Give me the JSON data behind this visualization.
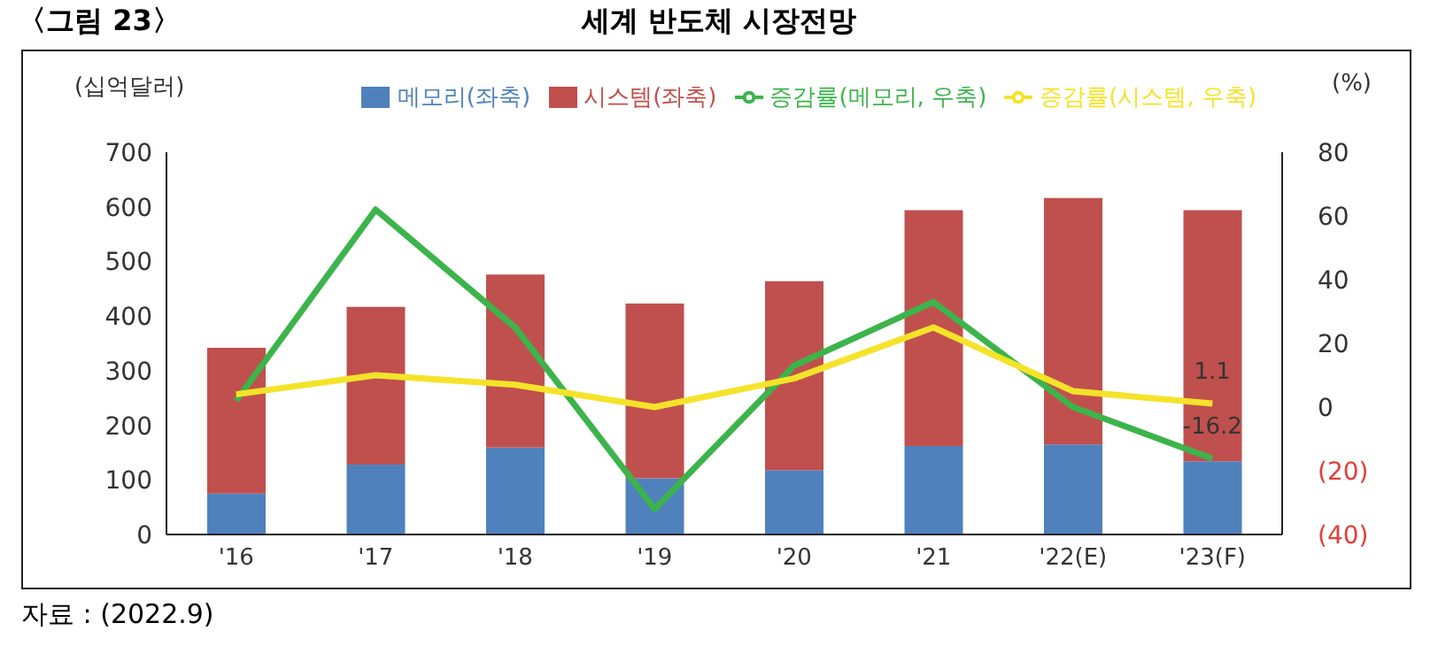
{
  "chart_data": {
    "type": "bar",
    "title": "세계 반도체 시장전망",
    "annotations": [
      "〈그림 23〉",
      "자료 : (2022.9)"
    ],
    "ylabel": "(십억달러)",
    "y2label": "(%)",
    "categories": [
      "'16",
      "'17",
      "'18",
      "'19",
      "'20",
      "'21",
      "'22(E)",
      "'23(F)"
    ],
    "stacked": true,
    "series": [
      {
        "name": "메모리(좌축)",
        "color": "#4f81bd",
        "values": [
          75,
          128,
          159,
          103,
          118,
          162,
          165,
          134
        ]
      },
      {
        "name": "시스템(좌축)",
        "color": "#c0504d",
        "values": [
          267,
          289,
          317,
          320,
          346,
          432,
          451,
          460
        ]
      },
      {
        "name": "증감률(메모리, 우축)",
        "type": "line",
        "axis": "y2",
        "color": "#3cb44b",
        "values": [
          2,
          62,
          25,
          -32,
          13,
          33,
          0,
          -16.2
        ],
        "value_labels": [
          null,
          null,
          null,
          null,
          null,
          null,
          null,
          "-16.2"
        ]
      },
      {
        "name": "증감률(시스템, 우축)",
        "type": "line",
        "axis": "y2",
        "color": "#f5e32a",
        "values": [
          4,
          10,
          7,
          0,
          9,
          25,
          5,
          1.1
        ],
        "value_labels": [
          null,
          null,
          null,
          null,
          null,
          null,
          null,
          "1.1"
        ]
      }
    ],
    "ylim": [
      0,
      700
    ],
    "yticks": [
      0,
      100,
      200,
      300,
      400,
      500,
      600,
      700
    ],
    "y2lim": [
      -40,
      80
    ],
    "y2ticks": [
      {
        "value": -40,
        "label": "(40)"
      },
      {
        "value": -20,
        "label": "(20)"
      },
      0,
      20,
      40,
      60,
      80
    ],
    "legend": "top",
    "grid": false,
    "marker": "none",
    "line_style": "solid"
  }
}
